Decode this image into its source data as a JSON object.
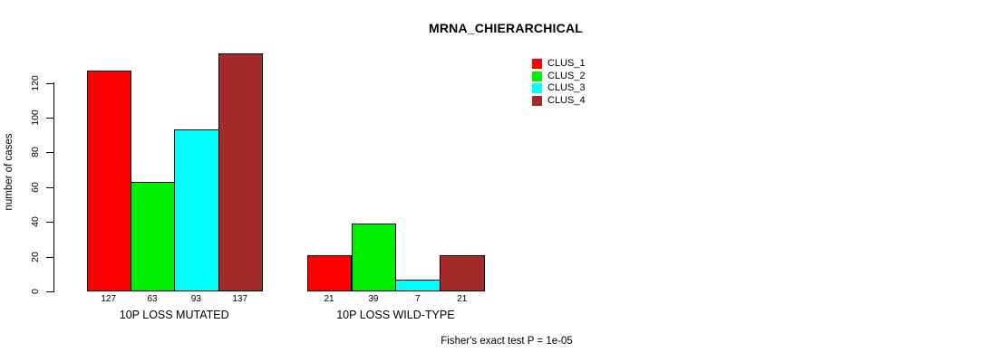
{
  "chart_data": {
    "type": "bar",
    "title": "MRNA_CHIERARCHICAL",
    "ylabel": "number of cases",
    "xlabel": "",
    "ylim": [
      0,
      120
    ],
    "yticks": [
      0,
      20,
      40,
      60,
      80,
      100,
      120
    ],
    "grid": false,
    "legend_position": "top-right-inside",
    "bar_value_labels_shown": true,
    "categories": [
      "10P LOSS MUTATED",
      "10P LOSS WILD-TYPE"
    ],
    "series": [
      {
        "name": "CLUS_1",
        "color": "#ff0000",
        "values": [
          127,
          21
        ]
      },
      {
        "name": "CLUS_2",
        "color": "#00ee00",
        "values": [
          63,
          39
        ]
      },
      {
        "name": "CLUS_3",
        "color": "#00ffff",
        "values": [
          93,
          7
        ]
      },
      {
        "name": "CLUS_4",
        "color": "#a52a2a",
        "values": [
          137,
          21
        ]
      }
    ],
    "annotation": "Fisher's exact test P = 1e-05"
  }
}
